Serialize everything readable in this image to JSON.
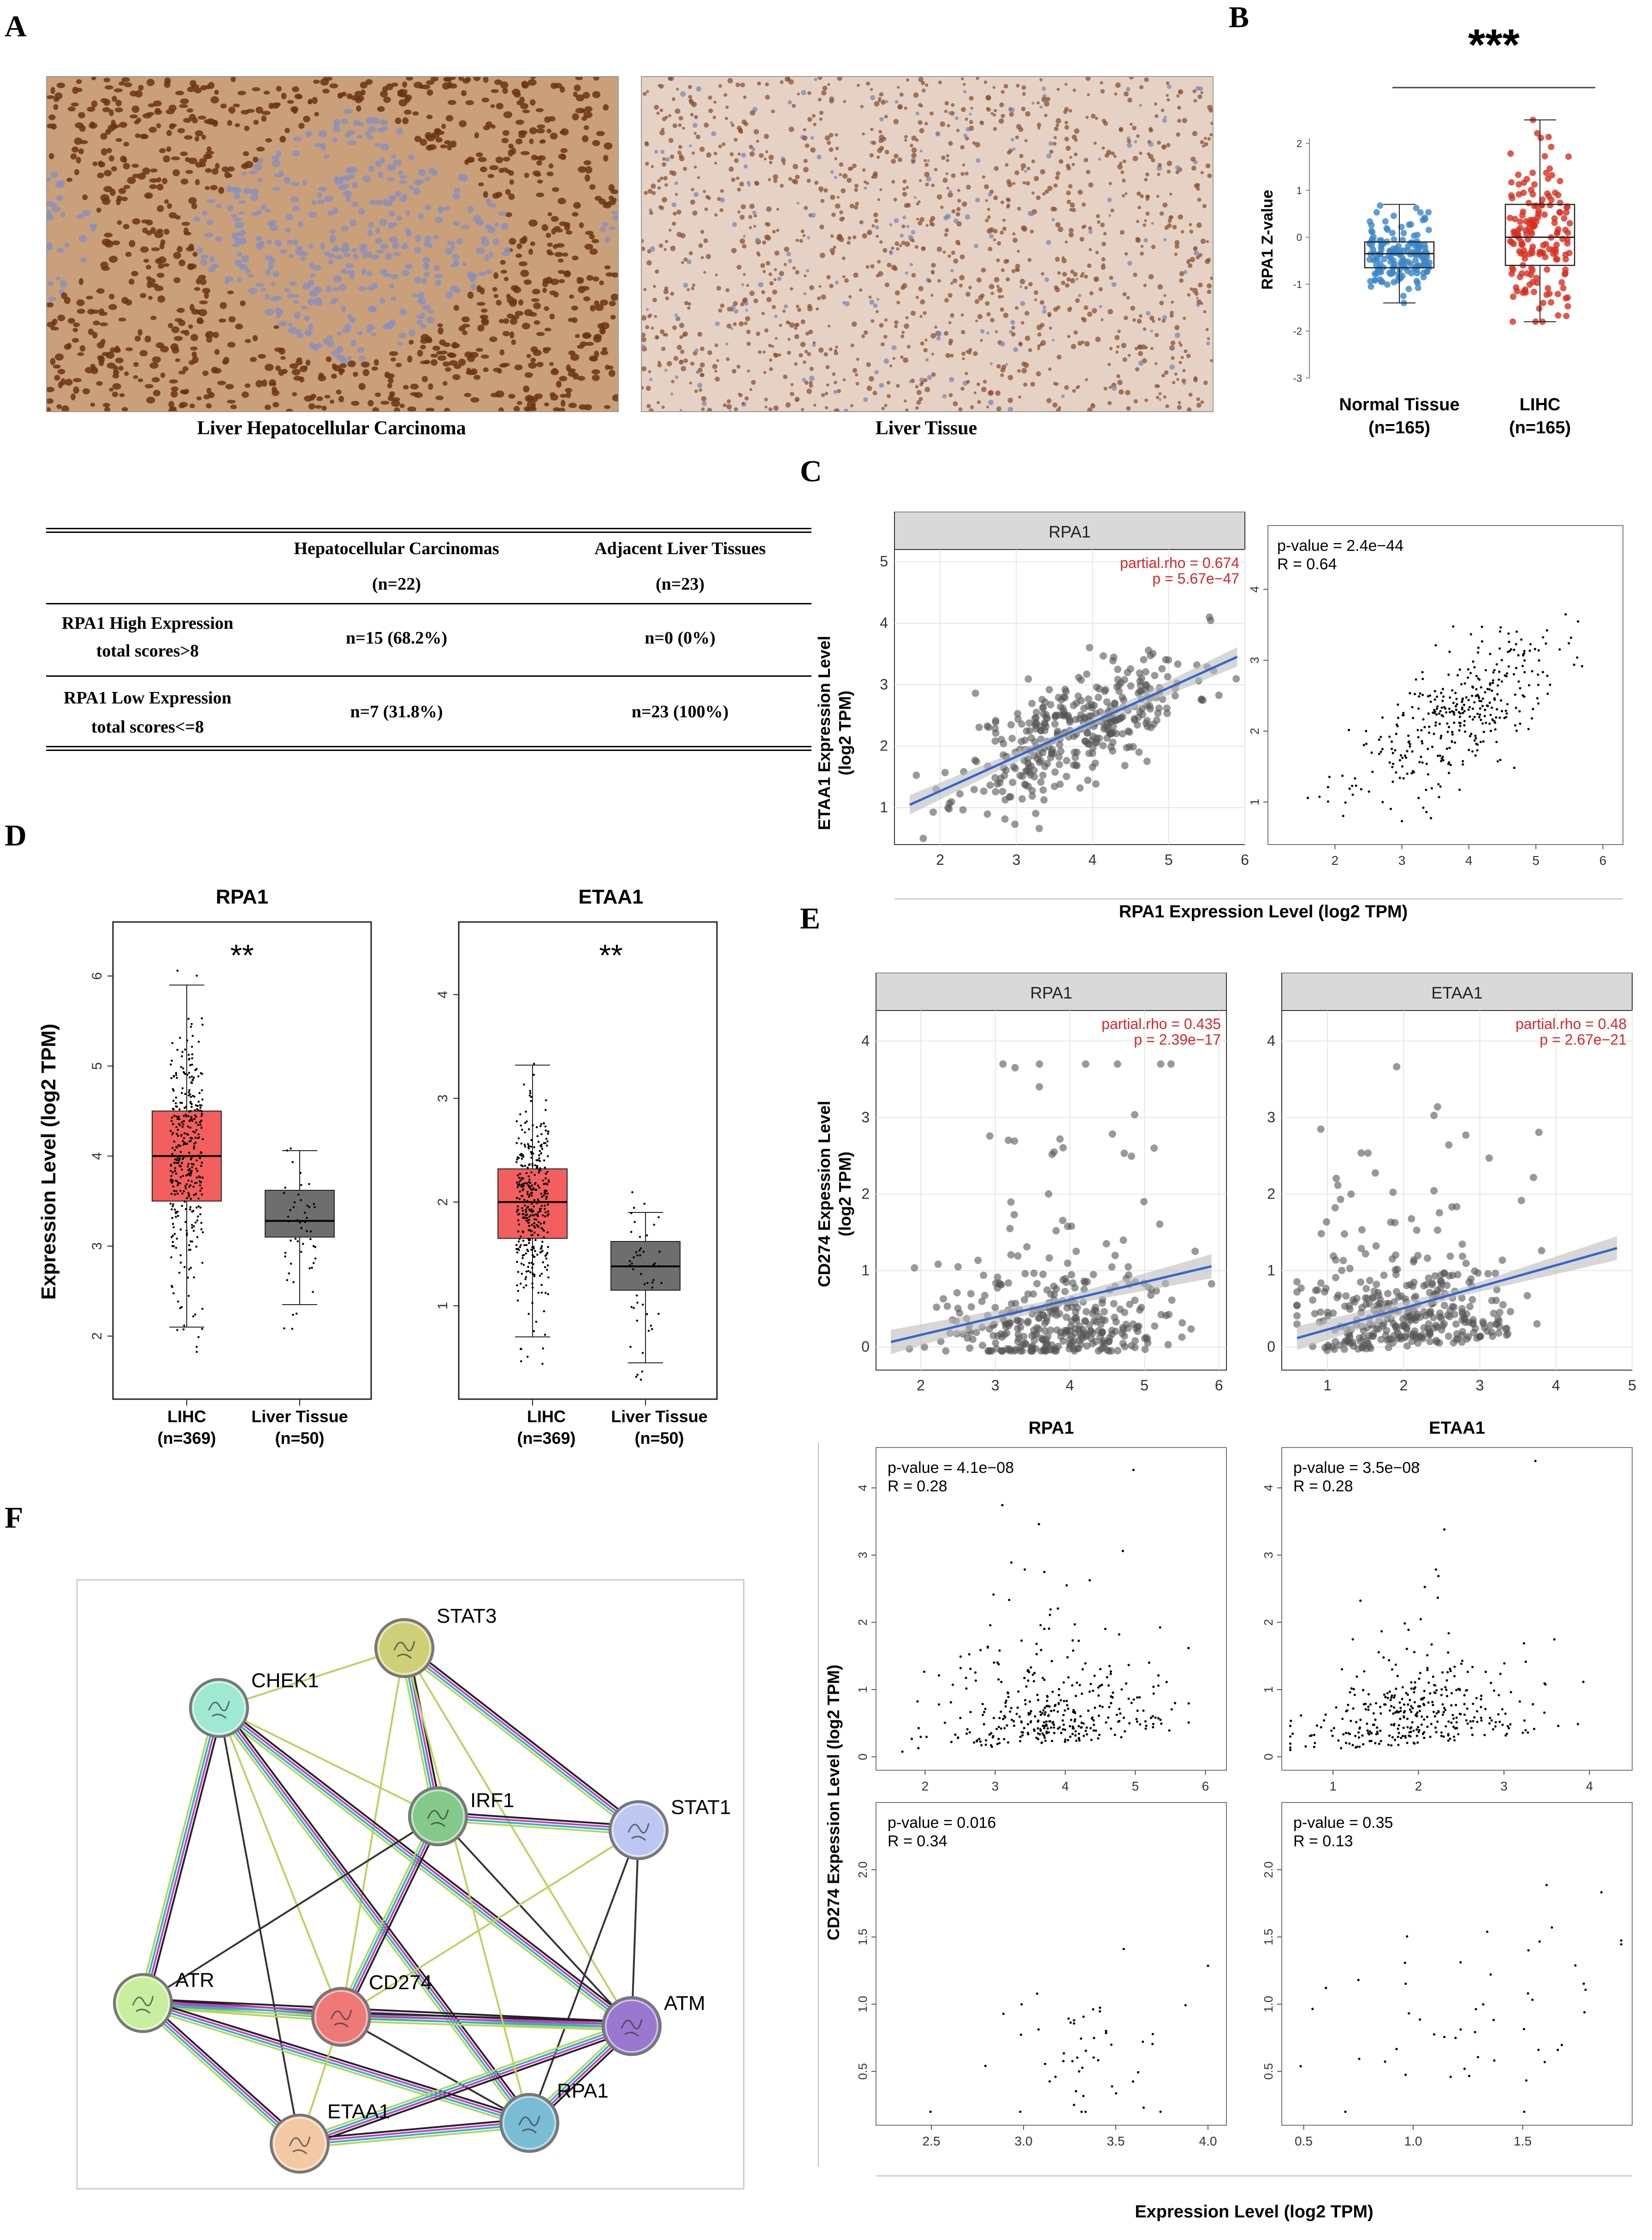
{
  "panels": {
    "A": "A",
    "B": "B",
    "C": "C",
    "D": "D",
    "E": "E",
    "F": "F"
  },
  "panelA": {
    "caption_left": "Liver Hepatocellular Carcinoma",
    "caption_right": "Liver Tissue",
    "colors": {
      "tumor_bg": "#c9a07a",
      "tumor_nuclei": "#6b3413",
      "normal_bg": "#e6d2c4",
      "normal_nuclei": "#8a5236"
    }
  },
  "table": {
    "col1_title": "Hepatocellular Carcinomas",
    "col1_n": "(n=22)",
    "col2_title": "Adjacent Liver Tissues",
    "col2_n": "(n=23)",
    "row1_label_a": "RPA1 High Expression",
    "row1_label_b": "total scores>8",
    "row1_c1": "n=15 (68.2%)",
    "row1_c2": "n=0 (0%)",
    "row2_label_a": "RPA1 Low Expression",
    "row2_label_b": "total scores<=8",
    "row2_c1": "n=7 (31.8%)",
    "row2_c2": "n=23 (100%)"
  },
  "panelB": {
    "significance": "***",
    "ylabel": "RPA1  Z-value",
    "yticks": [
      "2",
      "1",
      "0",
      "-1",
      "-2",
      "-3"
    ],
    "group1": "Normal Tissue",
    "group1_n": "(n=165)",
    "group2": "LIHC",
    "group2_n": "(n=165)"
  },
  "panelC": {
    "facet": "RPA1",
    "stat_rho": "partial.rho = 0.674",
    "stat_p": "p = 5.67e−47",
    "ylabel_a": "ETAA1 Expression Level",
    "ylabel_b": "(log2 TPM)",
    "yticks": [
      "5",
      "4",
      "3",
      "2",
      "1"
    ],
    "xticks": [
      "2",
      "3",
      "4",
      "5",
      "6"
    ],
    "right_pval": "p-value = 2.4e−44",
    "right_r": "R = 0.64",
    "right_yticks": [
      "4",
      "3",
      "2",
      "1"
    ],
    "right_xticks": [
      "2",
      "3",
      "4",
      "5",
      "6"
    ],
    "xlabel": "RPA1 Expression Level (log2 TPM)"
  },
  "panelD": {
    "ylabel": "Expression Level (log2 TPM)",
    "left_title": "RPA1",
    "left_sig": "**",
    "left_yticks": [
      "6",
      "5",
      "4",
      "3",
      "2"
    ],
    "right_title": "ETAA1",
    "right_sig": "**",
    "right_yticks": [
      "4",
      "3",
      "2",
      "1"
    ],
    "g1": "LIHC",
    "g1_n": "(n=369)",
    "g2": "Liver Tissue",
    "g2_n": "(n=50)"
  },
  "panelE": {
    "ylabel_a": "CD274  Expession Level",
    "ylabel_b": "(log2 TPM)",
    "left_facet": "RPA1",
    "left_rho": "partial.rho = 0.435",
    "left_p": "p = 2.39e−17",
    "right_facet": "ETAA1",
    "right_rho": "partial.rho = 0.48",
    "right_p": "p = 2.67e−21",
    "yticks": [
      "4",
      "3",
      "2",
      "1",
      "0"
    ],
    "left_xticks": [
      "2",
      "3",
      "4",
      "5",
      "6"
    ],
    "right_xticks": [
      "1",
      "2",
      "3",
      "4",
      "5"
    ],
    "title_left": "RPA1",
    "title_right": "ETAA1",
    "gl1_pval": "p-value = 4.1e−08",
    "gl1_r": "R = 0.28",
    "gl1_yticks": [
      "4",
      "3",
      "2",
      "1",
      "0"
    ],
    "gl1_xticks": [
      "2",
      "3",
      "4",
      "5",
      "6"
    ],
    "gr1_pval": "p-value = 3.5e−08",
    "gr1_r": "R = 0.28",
    "gr1_yticks": [
      "4",
      "3",
      "2",
      "1",
      "0"
    ],
    "gr1_xticks": [
      "1",
      "2",
      "3",
      "4"
    ],
    "gl2_pval": "p-value = 0.016",
    "gl2_r": "R = 0.34",
    "gl2_yticks": [
      "2.0",
      "1.5",
      "1.0",
      "0.5"
    ],
    "gl2_xticks": [
      "2.5",
      "3.0",
      "3.5",
      "4.0"
    ],
    "gr2_pval": "p-value = 0.35",
    "gr2_r": "R = 0.13",
    "gr2_yticks": [
      "2.0",
      "1.5",
      "1.0",
      "0.5"
    ],
    "gr2_xticks": [
      "0.5",
      "1.0",
      "1.5"
    ],
    "ylabel_bottom": "CD274  Expession Level  (log2 TPM)",
    "xlabel_bottom": "Expression Level (log2 TPM)"
  },
  "panelF": {
    "nodes": [
      "STAT3",
      "CHEK1",
      "IRF1",
      "STAT1",
      "ATR",
      "CD274",
      "ATM",
      "ETAA1",
      "RPA1"
    ],
    "node_colors": {
      "STAT3": "#cfcf78",
      "CHEK1": "#9fe8d2",
      "IRF1": "#84c98a",
      "STAT1": "#bcc7f2",
      "ATR": "#c8eea0",
      "CD274": "#ee7a78",
      "ATM": "#9a78cf",
      "ETAA1": "#f3c9a3",
      "RPA1": "#79bcd3"
    }
  },
  "chart_data": [
    {
      "type": "scatter",
      "title": "RPA1",
      "stat": "partial.rho = 0.674, p = 5.67e−47",
      "xlabel": "RPA1 Expression Level (log2 TPM)",
      "ylabel": "ETAA1 Expression Level (log2 TPM)",
      "xlim": [
        1.4,
        6.0
      ],
      "ylim": [
        0.4,
        5.2
      ]
    },
    {
      "type": "scatter",
      "stat": "p-value = 2.4e−44, R = 0.64",
      "xlim": [
        1.0,
        6.3
      ],
      "ylim": [
        0.4,
        4.9
      ]
    },
    {
      "type": "scatter",
      "title": "RPA1",
      "stat": "partial.rho = 0.435, p = 2.39e−17",
      "ylabel": "CD274 Expession Level (log2 TPM)",
      "xlim": [
        1.4,
        6.1
      ],
      "ylim": [
        -0.3,
        4.4
      ]
    },
    {
      "type": "scatter",
      "title": "ETAA1",
      "stat": "partial.rho = 0.48, p = 2.67e−21",
      "xlim": [
        0.4,
        5.0
      ],
      "ylim": [
        -0.3,
        4.4
      ]
    },
    {
      "type": "box",
      "title": "RPA1 Z-value",
      "categories": [
        "Normal Tissue",
        "LIHC"
      ],
      "series": [
        {
          "name": "Normal Tissue",
          "median": -0.35,
          "q1": -0.65,
          "q3": -0.1,
          "lo": -1.4,
          "hi": 0.7
        },
        {
          "name": "LIHC",
          "median": 0.0,
          "q1": -0.6,
          "q3": 0.7,
          "lo": -1.8,
          "hi": 2.5
        }
      ],
      "ylim": [
        -3,
        2.6
      ]
    },
    {
      "type": "box",
      "title": "RPA1",
      "categories": [
        "LIHC",
        "Liver Tissue"
      ],
      "series": [
        {
          "name": "LIHC",
          "median": 4.0,
          "q1": 3.5,
          "q3": 4.5,
          "lo": 2.1,
          "hi": 5.9
        },
        {
          "name": "Liver Tissue",
          "median": 3.28,
          "q1": 3.1,
          "q3": 3.62,
          "lo": 2.35,
          "hi": 4.06
        }
      ],
      "ylim": [
        1.3,
        6.6
      ]
    },
    {
      "type": "box",
      "title": "ETAA1",
      "categories": [
        "LIHC",
        "Liver Tissue"
      ],
      "series": [
        {
          "name": "LIHC",
          "median": 2.0,
          "q1": 1.65,
          "q3": 2.32,
          "lo": 0.7,
          "hi": 3.32
        },
        {
          "name": "Liver Tissue",
          "median": 1.38,
          "q1": 1.15,
          "q3": 1.62,
          "lo": 0.45,
          "hi": 1.9
        }
      ],
      "ylim": [
        0.1,
        4.7
      ]
    }
  ]
}
